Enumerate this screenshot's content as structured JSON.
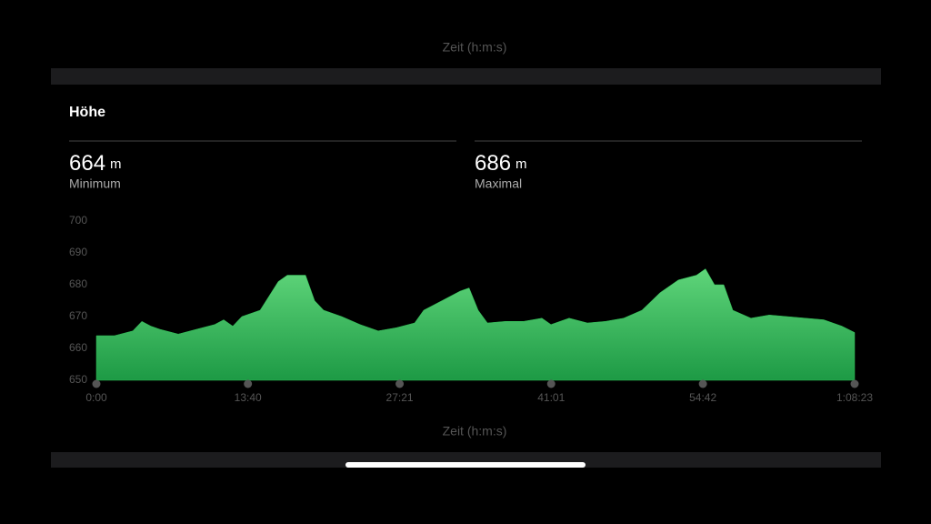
{
  "top_caption": "Zeit (h:m:s)",
  "section_title": "Höhe",
  "stats": [
    {
      "value": 664,
      "unit": "m",
      "label": "Minimum"
    },
    {
      "value": 686,
      "unit": "m",
      "label": "Maximal"
    }
  ],
  "chart_data": {
    "type": "area",
    "x_label": "Zeit (h:m:s)",
    "x": [
      0,
      98,
      197,
      246,
      295,
      344,
      443,
      541,
      640,
      689,
      738,
      787,
      886,
      935,
      984,
      1033,
      1132,
      1181,
      1230,
      1328,
      1427,
      1525,
      1623,
      1722,
      1771,
      1870,
      1968,
      2017,
      2066,
      2116,
      2214,
      2312,
      2411,
      2460,
      2558,
      2657,
      2755,
      2853,
      2952,
      3050,
      3149,
      3247,
      3296,
      3345,
      3395,
      3444,
      3542,
      3641,
      3739,
      3837,
      3936,
      4034,
      4103
    ],
    "values": [
      664,
      664,
      665.5,
      668.5,
      667,
      666,
      664.5,
      666,
      667.5,
      669,
      667,
      670,
      672,
      676.5,
      681,
      683,
      683,
      675,
      672,
      670,
      667.5,
      665.5,
      666.5,
      668,
      672,
      675,
      678,
      679,
      672,
      668,
      668.5,
      668.5,
      669.5,
      667.5,
      669.5,
      668,
      668.5,
      669.5,
      672,
      677.5,
      681.5,
      683,
      685,
      680,
      680,
      672,
      669.5,
      670.5,
      670,
      669.5,
      669,
      667,
      665
    ],
    "color": "#2fbf55",
    "xlim": [
      0,
      4103
    ],
    "xticks": [
      {
        "value": 0,
        "label": "0:00"
      },
      {
        "value": 820,
        "label": "13:40"
      },
      {
        "value": 1641,
        "label": "27:21"
      },
      {
        "value": 2461,
        "label": "41:01"
      },
      {
        "value": 3282,
        "label": "54:42"
      },
      {
        "value": 4103,
        "label": "1:08:23"
      }
    ],
    "ylim": [
      650,
      700
    ],
    "yticks": [
      650,
      660,
      670,
      680,
      690,
      700
    ]
  }
}
